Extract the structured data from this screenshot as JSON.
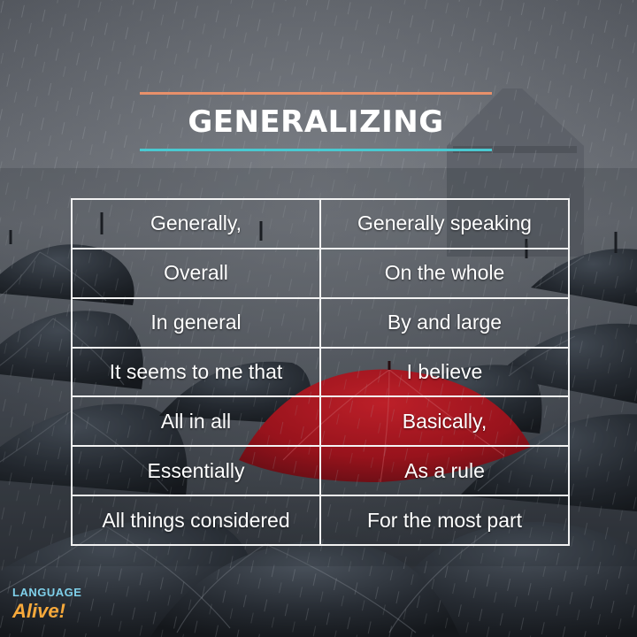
{
  "title": "GENERALIZING",
  "colors": {
    "top_rule": "#e8906a",
    "bottom_rule": "#49c9d1",
    "red_umbrella": "#c8141c",
    "logo_language": "#7fd0ea",
    "logo_alive": "#f7a93b"
  },
  "phrases": [
    {
      "left": "Generally,",
      "right": "Generally speaking"
    },
    {
      "left": "Overall",
      "right": "On the whole"
    },
    {
      "left": "In general",
      "right": "By and large"
    },
    {
      "left": "It seems to me that",
      "right": "I believe"
    },
    {
      "left": "All in all",
      "right": "Basically,"
    },
    {
      "left": "Essentially",
      "right": "As a rule"
    },
    {
      "left": "All things considered",
      "right": "For the most part"
    }
  ],
  "logo": {
    "top": "LANGUAGE",
    "bottom": "Alive!"
  }
}
